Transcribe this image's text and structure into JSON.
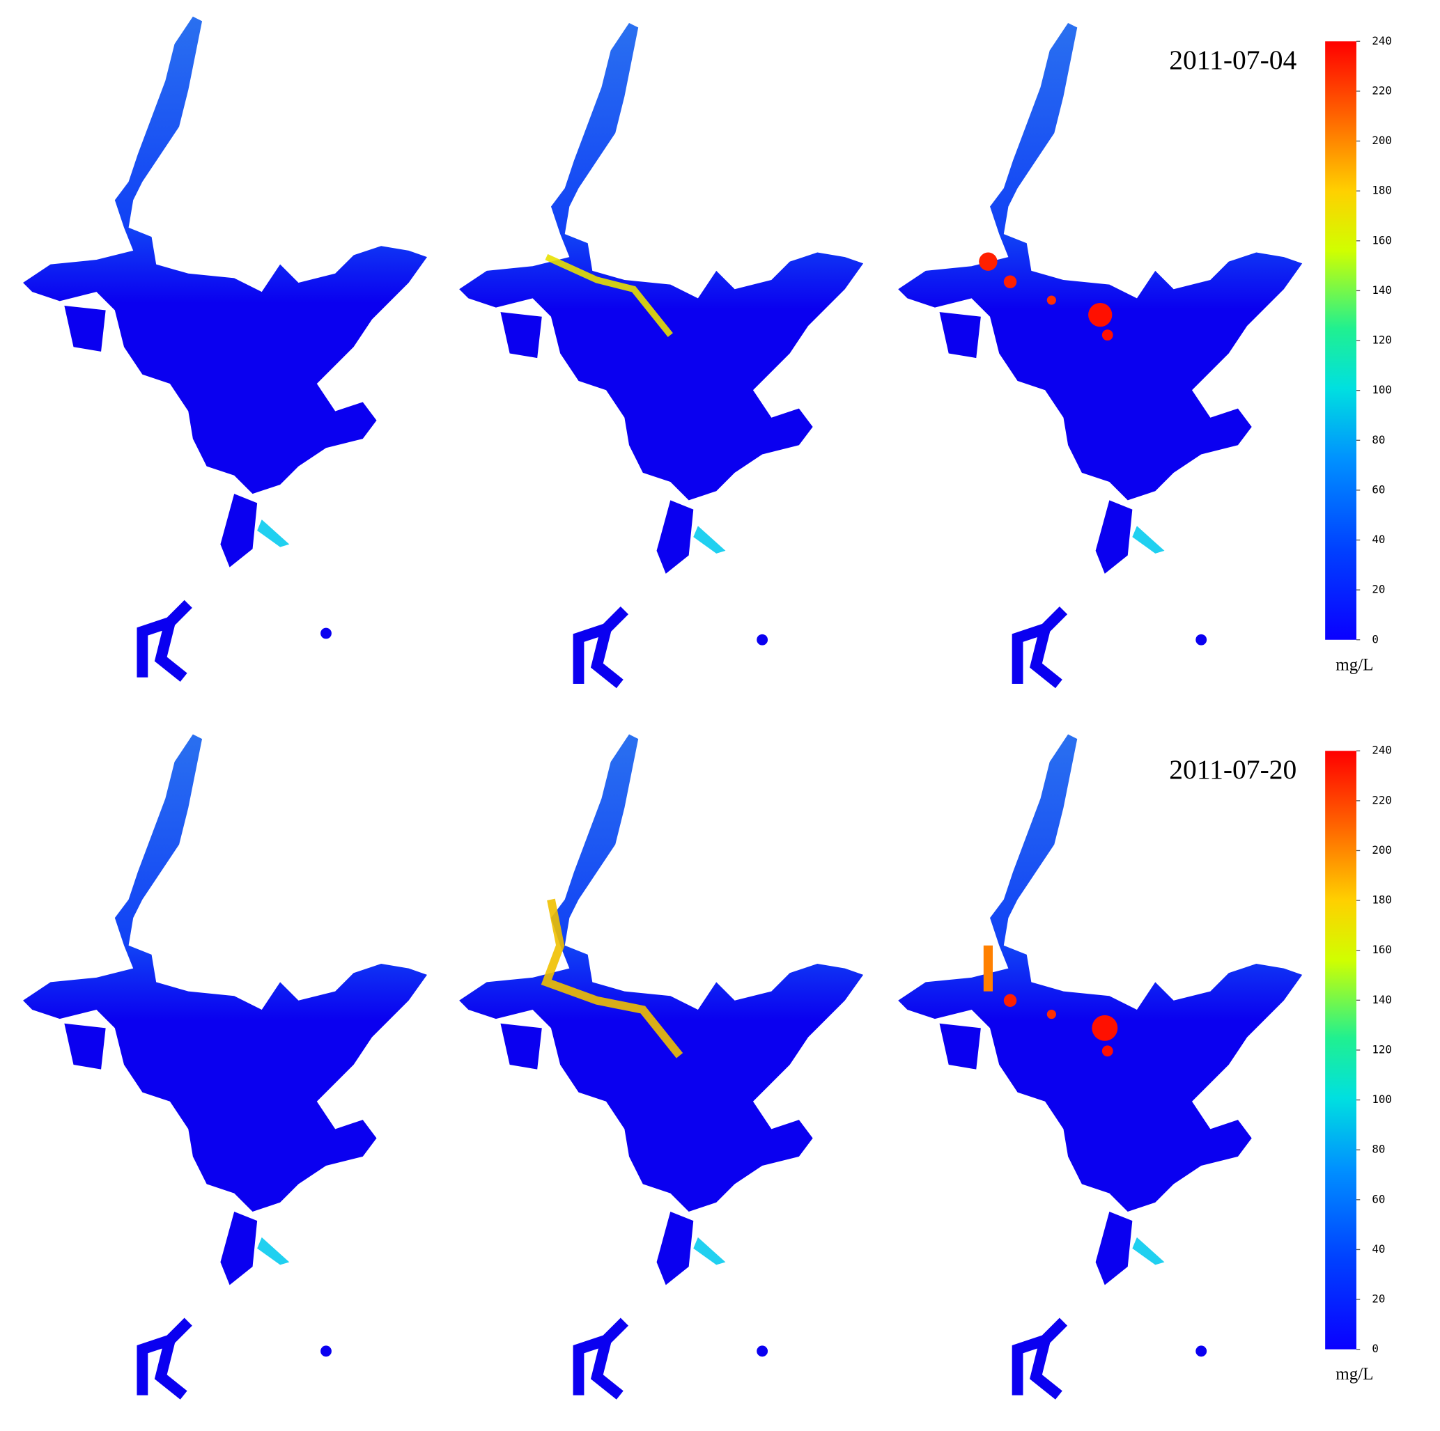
{
  "panels": [
    {
      "date": "2011-07-04",
      "colorbar": {
        "range": [
          0,
          240
        ],
        "ticks": [
          0,
          20,
          40,
          60,
          80,
          100,
          120,
          140,
          160,
          180,
          200,
          220,
          240
        ],
        "unit": "mg/L"
      }
    },
    {
      "date": "2011-07-20",
      "colorbar": {
        "range": [
          0,
          240
        ],
        "ticks": [
          0,
          20,
          40,
          60,
          80,
          100,
          120,
          140,
          160,
          180,
          200,
          220,
          240
        ],
        "unit": "mg/L"
      }
    }
  ]
}
